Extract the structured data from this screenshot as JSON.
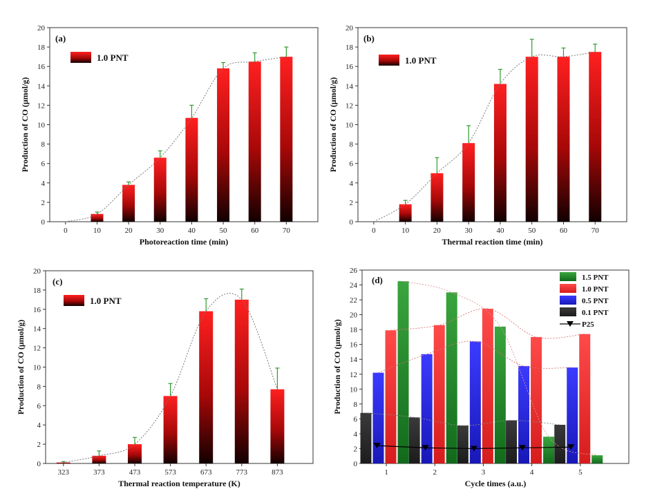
{
  "chart_data": [
    {
      "type": "bar",
      "panel_label": "(a)",
      "xlabel": "Photoreaction time (min)",
      "ylabel": "Production of CO (μmol/g)",
      "categories": [
        "0",
        "10",
        "20",
        "30",
        "40",
        "50",
        "60",
        "70"
      ],
      "ylim": [
        0,
        20
      ],
      "yticks": [
        "0",
        "2",
        "4",
        "6",
        "8",
        "10",
        "12",
        "14",
        "16",
        "18",
        "20"
      ],
      "series": [
        {
          "name": "1.0 PNT",
          "values": [
            0,
            0.8,
            3.8,
            6.6,
            10.7,
            15.8,
            16.5,
            17.0
          ],
          "errors": [
            0,
            0.2,
            0.3,
            0.7,
            1.3,
            0.6,
            0.9,
            1.0
          ]
        }
      ],
      "trend": "dashed fit",
      "legend_position": "top-left"
    },
    {
      "type": "bar",
      "panel_label": "(b)",
      "xlabel": "Thermal reaction time (min)",
      "ylabel": "Production of CO (μmol/g)",
      "categories": [
        "0",
        "10",
        "20",
        "30",
        "40",
        "50",
        "60",
        "70"
      ],
      "ylim": [
        0,
        20
      ],
      "yticks": [
        "0",
        "2",
        "4",
        "6",
        "8",
        "10",
        "12",
        "14",
        "16",
        "18",
        "20"
      ],
      "series": [
        {
          "name": "1.0 PNT",
          "values": [
            0,
            1.8,
            5.0,
            8.1,
            14.2,
            17.0,
            17.0,
            17.5
          ],
          "errors": [
            0,
            0.4,
            1.6,
            1.8,
            1.5,
            1.8,
            0.9,
            0.8
          ]
        }
      ],
      "trend": "dashed fit",
      "legend_position": "top-left"
    },
    {
      "type": "bar",
      "panel_label": "(c)",
      "xlabel": "Thermal reaction temperature (K)",
      "ylabel": "Production of CO (μmol/g)",
      "categories": [
        "323",
        "373",
        "473",
        "573",
        "673",
        "773",
        "873"
      ],
      "ylim": [
        0,
        20
      ],
      "yticks": [
        "0",
        "2",
        "4",
        "6",
        "8",
        "10",
        "12",
        "14",
        "16",
        "18",
        "20"
      ],
      "series": [
        {
          "name": "1.0 PNT",
          "values": [
            0.1,
            0.8,
            2.0,
            7.0,
            15.8,
            17.0,
            7.7
          ],
          "errors": [
            0.1,
            0.5,
            0.7,
            1.3,
            1.3,
            1.1,
            2.2
          ]
        }
      ],
      "trend": "dashed fit",
      "legend_position": "top-left"
    },
    {
      "type": "bar",
      "panel_label": "(d)",
      "xlabel": "Cycle times (a.u.)",
      "ylabel": "Production of CO (μmol/g)",
      "categories": [
        "1",
        "2",
        "3",
        "4",
        "5"
      ],
      "ylim": [
        0,
        26
      ],
      "yticks": [
        "0",
        "2",
        "4",
        "6",
        "8",
        "10",
        "12",
        "14",
        "16",
        "18",
        "20",
        "22",
        "24",
        "26"
      ],
      "series": [
        {
          "name": "0.1 PNT",
          "values": [
            6.8,
            6.2,
            5.1,
            5.8,
            5.2
          ],
          "color": "#2b2b2b"
        },
        {
          "name": "0.5 PNT",
          "values": [
            12.2,
            14.7,
            16.4,
            13.1,
            12.9
          ],
          "color": "#2828e0"
        },
        {
          "name": "1.0 PNT",
          "values": [
            17.9,
            18.6,
            20.8,
            17.0,
            17.4
          ],
          "color": "#ec2828"
        },
        {
          "name": "1.5 PNT",
          "values": [
            24.5,
            23.0,
            18.4,
            3.6,
            1.1
          ],
          "color": "#1e8e2a"
        },
        {
          "name": "P25",
          "type": "line",
          "values": [
            2.4,
            2.1,
            2.0,
            2.1,
            2.2
          ],
          "color": "#000000"
        }
      ],
      "legend": [
        "1.5 PNT",
        "1.0 PNT",
        "0.5 PNT",
        "0.1 PNT",
        "P25"
      ],
      "legend_position": "top-right"
    }
  ]
}
